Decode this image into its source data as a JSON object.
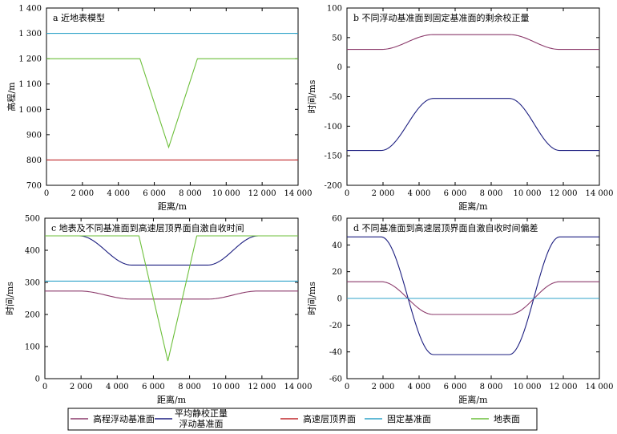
{
  "chart_data": [
    {
      "type": "line",
      "title": "a 近地表模型",
      "xlabel": "距离/m",
      "ylabel": "高程/m",
      "xlim": [
        0,
        14000
      ],
      "ylim": [
        700,
        1400
      ],
      "xticks": [
        0,
        2000,
        4000,
        6000,
        8000,
        10000,
        12000,
        14000
      ],
      "xtick_labels": [
        "0",
        "2 000",
        "4 000",
        "6 000",
        "8 000",
        "10 000",
        "12 000",
        "14 000"
      ],
      "yticks": [
        700,
        800,
        900,
        1000,
        1100,
        1200,
        1300,
        1400
      ],
      "ytick_labels": [
        "700",
        "800",
        "900",
        "1 000",
        "1 100",
        "1 200",
        "1 300",
        "1 400"
      ],
      "series": [
        {
          "name": "高速层顶界面",
          "color": "#c0292b",
          "x": [
            0,
            14000
          ],
          "y": [
            800,
            800
          ]
        },
        {
          "name": "固定基准面",
          "color": "#2fa3c9",
          "x": [
            0,
            14000
          ],
          "y": [
            1300,
            1300
          ]
        },
        {
          "name": "地表面",
          "color": "#6cbf3a",
          "x": [
            0,
            5200,
            6800,
            8400,
            14000
          ],
          "y": [
            1200,
            1200,
            850,
            1200,
            1200
          ]
        }
      ]
    },
    {
      "type": "line",
      "title": "b 不同浮动基准面到固定基准面的剩余校正量",
      "xlabel": "距离/m",
      "ylabel": "时间/ms",
      "xlim": [
        0,
        14000
      ],
      "ylim": [
        -200,
        100
      ],
      "xticks": [
        0,
        2000,
        4000,
        6000,
        8000,
        10000,
        12000,
        14000
      ],
      "xtick_labels": [
        "0",
        "2 000",
        "4 000",
        "6 000",
        "8 000",
        "10 000",
        "12 000",
        "14 000"
      ],
      "yticks": [
        -200,
        -150,
        -100,
        -50,
        0,
        50,
        100
      ],
      "ytick_labels": [
        "-200",
        "-150",
        "-100",
        "-50",
        "0",
        "50",
        "100"
      ],
      "series": [
        {
          "name": "高程浮动基准面",
          "color": "#8b3a6b",
          "x": [
            0,
            1900,
            4800,
            9000,
            11800,
            14000
          ],
          "y": [
            30,
            30,
            55,
            55,
            30,
            30
          ]
        },
        {
          "name": "平均静校正量浮动基准面",
          "color": "#1d1f80",
          "x": [
            0,
            1900,
            4800,
            9000,
            11800,
            14000
          ],
          "y": [
            -141,
            -141,
            -53,
            -53,
            -141,
            -141
          ]
        }
      ]
    },
    {
      "type": "line",
      "title": "c 地表及不同基准面到高速层顶界面自激自收时间",
      "xlabel": "距离/m",
      "ylabel": "时间/ms",
      "xlim": [
        0,
        14000
      ],
      "ylim": [
        0,
        500
      ],
      "xticks": [
        0,
        2000,
        4000,
        6000,
        8000,
        10000,
        12000,
        14000
      ],
      "xtick_labels": [
        "0",
        "2 000",
        "4 000",
        "6 000",
        "8 000",
        "10 000",
        "12 000",
        "14 000"
      ],
      "yticks": [
        0,
        100,
        200,
        300,
        400,
        500
      ],
      "ytick_labels": [
        "0",
        "100",
        "200",
        "300",
        "400",
        "500"
      ],
      "series": [
        {
          "name": "高程浮动基准面",
          "color": "#8b3a6b",
          "x": [
            0,
            1900,
            4800,
            9000,
            11800,
            14000
          ],
          "y": [
            273,
            273,
            248,
            248,
            273,
            273
          ]
        },
        {
          "name": "平均静校正量浮动基准面",
          "color": "#1d1f80",
          "x": [
            0,
            1900,
            4800,
            9000,
            11800,
            14000
          ],
          "y": [
            445,
            445,
            354,
            354,
            445,
            445
          ]
        },
        {
          "name": "固定基准面",
          "color": "#2fa3c9",
          "x": [
            0,
            14000
          ],
          "y": [
            304,
            304
          ]
        },
        {
          "name": "地表面",
          "color": "#6cbf3a",
          "x": [
            0,
            5200,
            6800,
            8400,
            14000
          ],
          "y": [
            445,
            445,
            55,
            445,
            445
          ]
        }
      ]
    },
    {
      "type": "line",
      "title": "d 不同基准面到高速层顶界面自激自收时间偏差",
      "xlabel": "距离/m",
      "ylabel": "时间/ms",
      "xlim": [
        0,
        14000
      ],
      "ylim": [
        -60,
        60
      ],
      "xticks": [
        0,
        2000,
        4000,
        6000,
        8000,
        10000,
        12000,
        14000
      ],
      "xtick_labels": [
        "0",
        "2 000",
        "4 000",
        "6 000",
        "8 000",
        "10 000",
        "12 000",
        "14 000"
      ],
      "yticks": [
        -60,
        -40,
        -20,
        0,
        20,
        40,
        60
      ],
      "ytick_labels": [
        "-60",
        "-40",
        "-20",
        "0",
        "20",
        "40",
        "60"
      ],
      "series": [
        {
          "name": "高程浮动基准面",
          "color": "#8b3a6b",
          "x": [
            0,
            1900,
            4800,
            9000,
            11800,
            14000
          ],
          "y": [
            12.5,
            12.5,
            -12,
            -12,
            12.5,
            12.5
          ]
        },
        {
          "name": "平均静校正量浮动基准面",
          "color": "#1d1f80",
          "x": [
            0,
            1900,
            4800,
            9000,
            11800,
            14000
          ],
          "y": [
            46,
            46,
            -42,
            -42,
            46,
            46
          ]
        },
        {
          "name": "固定基准面",
          "color": "#2fa3c9",
          "x": [
            0,
            14000
          ],
          "y": [
            0,
            0
          ]
        }
      ]
    }
  ],
  "legend": {
    "placement": "bottom",
    "items": [
      {
        "label": "高程浮动基准面",
        "color": "#8b3a6b"
      },
      {
        "label": "平均静校正量",
        "label2": "浮动基准面",
        "color": "#1d1f80"
      },
      {
        "label": "高速层顶界面",
        "color": "#c0292b"
      },
      {
        "label": "固定基准面",
        "color": "#2fa3c9"
      },
      {
        "label": "地表面",
        "color": "#6cbf3a"
      }
    ]
  }
}
